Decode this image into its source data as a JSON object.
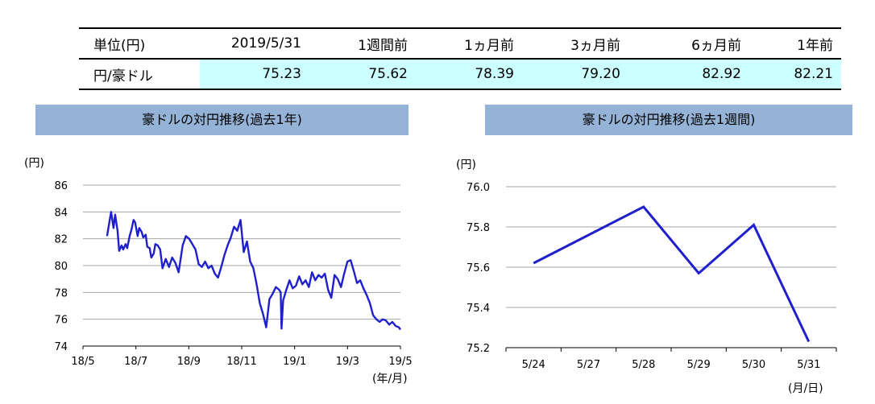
{
  "table": {
    "headers": [
      "単位(円)",
      "2019/5/31",
      "1週間前",
      "1ヵ月前",
      "3ヵ月前",
      "6ヵ月前",
      "1年前"
    ],
    "row_label": "円/豪ドル",
    "values": [
      "75.23",
      "75.62",
      "78.39",
      "79.20",
      "82.92",
      "82.21"
    ]
  },
  "chart_data": [
    {
      "type": "line",
      "title": "豪ドルの対円推移(過去1年)",
      "ylabel": "(円)",
      "xlabel": "(年/月)",
      "ylim": [
        74,
        86
      ],
      "yticks": [
        "74",
        "76",
        "78",
        "80",
        "82",
        "84",
        "86"
      ],
      "xticks": [
        "18/5",
        "18/7",
        "18/9",
        "18/11",
        "19/1",
        "19/3",
        "19/5"
      ],
      "grid": "horizontal",
      "color": "#1f1fcc",
      "series": [
        {
          "x": [
            "2018-05-31",
            "2018-06-03",
            "2018-06-05",
            "2018-06-08",
            "2018-06-10",
            "2018-06-13",
            "2018-06-15",
            "2018-06-18",
            "2018-06-20",
            "2018-06-23",
            "2018-06-25",
            "2018-06-28",
            "2018-06-30",
            "2018-07-03",
            "2018-07-05",
            "2018-07-08",
            "2018-07-10",
            "2018-07-13",
            "2018-07-15",
            "2018-07-18",
            "2018-07-20",
            "2018-07-23",
            "2018-07-25",
            "2018-07-28",
            "2018-07-30",
            "2018-08-02",
            "2018-08-05",
            "2018-08-08",
            "2018-08-12",
            "2018-08-16",
            "2018-08-20",
            "2018-08-24",
            "2018-08-28",
            "2018-09-02",
            "2018-09-06",
            "2018-09-10",
            "2018-09-14",
            "2018-09-18",
            "2018-09-22",
            "2018-09-26",
            "2018-09-30",
            "2018-10-04",
            "2018-10-08",
            "2018-10-12",
            "2018-10-16",
            "2018-10-20",
            "2018-10-24",
            "2018-10-28",
            "2018-11-01",
            "2018-11-05",
            "2018-11-09",
            "2018-11-13",
            "2018-11-17",
            "2018-11-21",
            "2018-11-25",
            "2018-11-29",
            "2018-12-03",
            "2018-12-07",
            "2018-12-11",
            "2018-12-15",
            "2018-12-19",
            "2018-12-23",
            "2018-12-27",
            "2018-12-31",
            "2019-01-02",
            "2019-01-03",
            "2019-01-05",
            "2019-01-09",
            "2019-01-13",
            "2019-01-17",
            "2019-01-21",
            "2019-01-25",
            "2019-01-29",
            "2019-02-02",
            "2019-02-06",
            "2019-02-10",
            "2019-02-14",
            "2019-02-18",
            "2019-02-22",
            "2019-02-26",
            "2019-03-02",
            "2019-03-06",
            "2019-03-10",
            "2019-03-14",
            "2019-03-18",
            "2019-03-22",
            "2019-03-26",
            "2019-03-30",
            "2019-04-03",
            "2019-04-07",
            "2019-04-11",
            "2019-04-15",
            "2019-04-19",
            "2019-04-23",
            "2019-04-27",
            "2019-05-01",
            "2019-05-05",
            "2019-05-09",
            "2019-05-13",
            "2019-05-17",
            "2019-05-21",
            "2019-05-25",
            "2019-05-29",
            "2019-05-31"
          ],
          "values": [
            82.2,
            83.3,
            84.0,
            82.8,
            83.8,
            82.6,
            81.1,
            81.5,
            81.2,
            81.6,
            81.3,
            82.2,
            82.6,
            83.4,
            83.2,
            82.2,
            82.8,
            82.5,
            82.1,
            82.3,
            81.4,
            81.3,
            80.6,
            80.9,
            81.6,
            81.5,
            81.2,
            79.8,
            80.5,
            79.9,
            80.6,
            80.2,
            79.5,
            81.5,
            82.2,
            82.0,
            81.6,
            81.2,
            80.1,
            79.9,
            80.3,
            79.8,
            80.0,
            79.4,
            79.1,
            79.9,
            80.8,
            81.5,
            82.1,
            82.9,
            82.6,
            83.4,
            81.0,
            81.8,
            80.3,
            79.8,
            78.6,
            77.2,
            76.4,
            75.4,
            77.5,
            77.9,
            78.4,
            78.2,
            78.0,
            75.3,
            77.4,
            78.2,
            78.9,
            78.3,
            78.5,
            79.2,
            78.6,
            78.9,
            78.4,
            79.5,
            78.9,
            79.3,
            79.1,
            79.4,
            78.2,
            77.6,
            79.3,
            79.0,
            78.4,
            79.4,
            80.3,
            80.4,
            79.6,
            78.7,
            78.9,
            78.3,
            77.8,
            77.2,
            76.3,
            76.0,
            75.8,
            76.0,
            75.9,
            75.6,
            75.8,
            75.5,
            75.4,
            75.23
          ]
        }
      ]
    },
    {
      "type": "line",
      "title": "豪ドルの対円推移(過去1週間)",
      "ylabel": "(円)",
      "xlabel": "(月/日)",
      "ylim": [
        75.2,
        76.0
      ],
      "yticks": [
        "75.2",
        "75.4",
        "75.6",
        "75.8",
        "76.0"
      ],
      "categories": [
        "5/24",
        "5/27",
        "5/28",
        "5/29",
        "5/30",
        "5/31"
      ],
      "grid": "horizontal",
      "color": "#1f1fcc",
      "series": [
        {
          "values": [
            75.62,
            75.76,
            75.9,
            75.57,
            75.81,
            75.23
          ]
        }
      ]
    }
  ]
}
